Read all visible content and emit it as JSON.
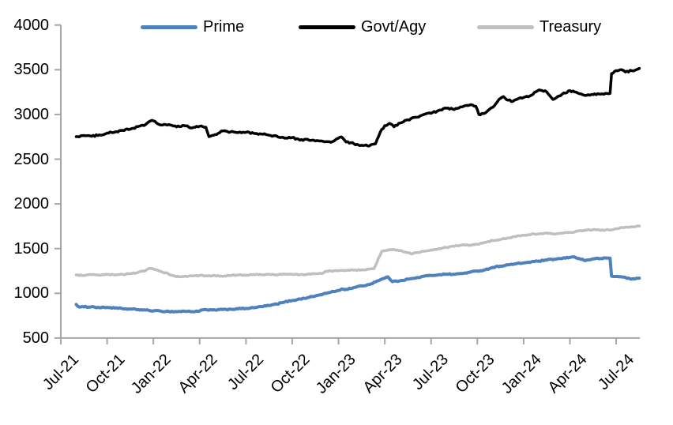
{
  "chart_data": {
    "type": "line",
    "title": "",
    "x_axis": {
      "unit": "month index, 0 = Jul-2021 (monthly series, quarterly ticks)",
      "tick_labels": [
        "Jul-21",
        "Oct-21",
        "Jan-22",
        "Apr-22",
        "Jul-22",
        "Oct-22",
        "Jan-23",
        "Apr-23",
        "Jul-23",
        "Oct-23",
        "Jan-24",
        "Apr-24",
        "Jul-24"
      ],
      "tick_month_index": [
        0,
        3,
        6,
        9,
        12,
        15,
        18,
        21,
        24,
        27,
        30,
        33,
        36
      ]
    },
    "y_axis": {
      "min": 500,
      "max": 4000,
      "tick_step": 500,
      "ticks": [
        500,
        1000,
        1500,
        2000,
        2500,
        3000,
        3500,
        4000
      ]
    },
    "legend": {
      "position": "top",
      "entries": [
        "Prime",
        "Govt/Agy",
        "Treasury"
      ]
    },
    "grid": false,
    "series": [
      {
        "name": "Prime",
        "color": "#4F81BD",
        "points": [
          [
            1.0,
            875
          ],
          [
            1.2,
            845
          ],
          [
            1.5,
            848
          ],
          [
            2.0,
            850
          ],
          [
            2.5,
            840
          ],
          [
            3.0,
            843
          ],
          [
            3.5,
            835
          ],
          [
            4.0,
            828
          ],
          [
            4.5,
            823
          ],
          [
            5.0,
            818
          ],
          [
            5.5,
            812
          ],
          [
            6.0,
            805
          ],
          [
            6.5,
            800
          ],
          [
            7.0,
            797
          ],
          [
            7.5,
            795
          ],
          [
            8.0,
            800
          ],
          [
            8.5,
            795
          ],
          [
            9.0,
            803
          ],
          [
            9.3,
            818
          ],
          [
            9.6,
            812
          ],
          [
            10.0,
            814
          ],
          [
            10.5,
            818
          ],
          [
            11.0,
            822
          ],
          [
            11.5,
            827
          ],
          [
            12.0,
            831
          ],
          [
            12.5,
            838
          ],
          [
            13.0,
            852
          ],
          [
            13.5,
            863
          ],
          [
            14.0,
            880
          ],
          [
            14.5,
            902
          ],
          [
            15.0,
            920
          ],
          [
            15.5,
            936
          ],
          [
            16.0,
            952
          ],
          [
            16.5,
            970
          ],
          [
            17.0,
            992
          ],
          [
            17.5,
            1012
          ],
          [
            18.0,
            1032
          ],
          [
            18.2,
            1048
          ],
          [
            18.4,
            1040
          ],
          [
            19.0,
            1065
          ],
          [
            19.5,
            1082
          ],
          [
            20.0,
            1098
          ],
          [
            20.5,
            1138
          ],
          [
            21.0,
            1170
          ],
          [
            21.2,
            1185
          ],
          [
            21.5,
            1130
          ],
          [
            22.0,
            1142
          ],
          [
            22.5,
            1158
          ],
          [
            23.0,
            1170
          ],
          [
            23.5,
            1190
          ],
          [
            24.0,
            1200
          ],
          [
            24.5,
            1208
          ],
          [
            25.0,
            1215
          ],
          [
            25.5,
            1212
          ],
          [
            26.0,
            1222
          ],
          [
            26.5,
            1235
          ],
          [
            27.0,
            1250
          ],
          [
            27.5,
            1262
          ],
          [
            28.0,
            1290
          ],
          [
            28.5,
            1305
          ],
          [
            29.0,
            1318
          ],
          [
            29.5,
            1330
          ],
          [
            30.0,
            1340
          ],
          [
            30.5,
            1352
          ],
          [
            31.0,
            1360
          ],
          [
            31.5,
            1372
          ],
          [
            32.0,
            1382
          ],
          [
            32.5,
            1390
          ],
          [
            33.0,
            1402
          ],
          [
            33.2,
            1408
          ],
          [
            33.6,
            1390
          ],
          [
            34.0,
            1366
          ],
          [
            34.5,
            1386
          ],
          [
            35.0,
            1390
          ],
          [
            35.5,
            1393
          ],
          [
            35.6,
            1393
          ],
          [
            35.7,
            1192
          ],
          [
            36.0,
            1188
          ],
          [
            36.5,
            1182
          ],
          [
            36.9,
            1162
          ],
          [
            37.0,
            1158
          ],
          [
            37.5,
            1170
          ]
        ]
      },
      {
        "name": "Govt/Agy",
        "color": "#000000",
        "points": [
          [
            1.0,
            2752
          ],
          [
            1.5,
            2765
          ],
          [
            2.0,
            2755
          ],
          [
            2.5,
            2772
          ],
          [
            3.0,
            2792
          ],
          [
            3.5,
            2803
          ],
          [
            4.0,
            2822
          ],
          [
            4.5,
            2836
          ],
          [
            5.0,
            2865
          ],
          [
            5.5,
            2888
          ],
          [
            5.9,
            2935
          ],
          [
            6.2,
            2905
          ],
          [
            6.5,
            2882
          ],
          [
            7.0,
            2888
          ],
          [
            7.5,
            2860
          ],
          [
            8.0,
            2875
          ],
          [
            8.5,
            2850
          ],
          [
            9.0,
            2868
          ],
          [
            9.4,
            2858
          ],
          [
            9.6,
            2752
          ],
          [
            10.0,
            2775
          ],
          [
            10.5,
            2815
          ],
          [
            11.0,
            2805
          ],
          [
            11.5,
            2797
          ],
          [
            12.0,
            2800
          ],
          [
            12.5,
            2790
          ],
          [
            13.0,
            2782
          ],
          [
            13.5,
            2768
          ],
          [
            14.0,
            2758
          ],
          [
            14.5,
            2735
          ],
          [
            15.0,
            2742
          ],
          [
            15.5,
            2712
          ],
          [
            16.0,
            2722
          ],
          [
            16.5,
            2703
          ],
          [
            17.0,
            2700
          ],
          [
            17.5,
            2688
          ],
          [
            18.0,
            2735
          ],
          [
            18.2,
            2748
          ],
          [
            18.5,
            2692
          ],
          [
            19.0,
            2672
          ],
          [
            19.5,
            2656
          ],
          [
            20.0,
            2648
          ],
          [
            20.4,
            2672
          ],
          [
            20.7,
            2800
          ],
          [
            21.0,
            2875
          ],
          [
            21.3,
            2900
          ],
          [
            21.6,
            2862
          ],
          [
            22.0,
            2905
          ],
          [
            22.5,
            2940
          ],
          [
            23.0,
            2968
          ],
          [
            23.5,
            2998
          ],
          [
            24.0,
            3012
          ],
          [
            24.5,
            3045
          ],
          [
            25.0,
            3070
          ],
          [
            25.5,
            3055
          ],
          [
            26.0,
            3085
          ],
          [
            26.5,
            3105
          ],
          [
            26.9,
            3092
          ],
          [
            27.1,
            3000
          ],
          [
            27.5,
            3015
          ],
          [
            28.0,
            3080
          ],
          [
            28.5,
            3180
          ],
          [
            28.7,
            3200
          ],
          [
            29.0,
            3160
          ],
          [
            29.3,
            3146
          ],
          [
            29.5,
            3165
          ],
          [
            30.0,
            3190
          ],
          [
            30.5,
            3215
          ],
          [
            31.0,
            3275
          ],
          [
            31.5,
            3252
          ],
          [
            31.9,
            3168
          ],
          [
            32.5,
            3228
          ],
          [
            33.0,
            3268
          ],
          [
            33.5,
            3240
          ],
          [
            34.0,
            3212
          ],
          [
            34.5,
            3222
          ],
          [
            35.0,
            3228
          ],
          [
            35.5,
            3232
          ],
          [
            35.6,
            3235
          ],
          [
            35.7,
            3458
          ],
          [
            36.0,
            3490
          ],
          [
            36.3,
            3502
          ],
          [
            36.6,
            3475
          ],
          [
            37.0,
            3490
          ],
          [
            37.5,
            3515
          ]
        ]
      },
      {
        "name": "Treasury",
        "color": "#BFBFBF",
        "points": [
          [
            1.0,
            1205
          ],
          [
            1.5,
            1200
          ],
          [
            2.0,
            1208
          ],
          [
            2.5,
            1202
          ],
          [
            3.0,
            1210
          ],
          [
            3.5,
            1205
          ],
          [
            4.0,
            1212
          ],
          [
            4.5,
            1220
          ],
          [
            5.0,
            1232
          ],
          [
            5.5,
            1255
          ],
          [
            5.8,
            1280
          ],
          [
            6.2,
            1262
          ],
          [
            6.5,
            1245
          ],
          [
            7.0,
            1215
          ],
          [
            7.5,
            1185
          ],
          [
            8.0,
            1188
          ],
          [
            8.5,
            1195
          ],
          [
            9.0,
            1200
          ],
          [
            9.5,
            1193
          ],
          [
            10.0,
            1197
          ],
          [
            10.5,
            1190
          ],
          [
            11.0,
            1200
          ],
          [
            11.5,
            1205
          ],
          [
            12.0,
            1200
          ],
          [
            12.5,
            1210
          ],
          [
            13.0,
            1208
          ],
          [
            13.5,
            1215
          ],
          [
            14.0,
            1205
          ],
          [
            14.5,
            1215
          ],
          [
            15.0,
            1212
          ],
          [
            15.5,
            1208
          ],
          [
            16.0,
            1213
          ],
          [
            16.5,
            1220
          ],
          [
            17.0,
            1225
          ],
          [
            17.2,
            1248
          ],
          [
            17.5,
            1250
          ],
          [
            18.0,
            1252
          ],
          [
            18.5,
            1255
          ],
          [
            19.0,
            1258
          ],
          [
            19.5,
            1263
          ],
          [
            20.0,
            1270
          ],
          [
            20.3,
            1276
          ],
          [
            20.8,
            1468
          ],
          [
            21.0,
            1475
          ],
          [
            21.5,
            1488
          ],
          [
            22.0,
            1478
          ],
          [
            22.5,
            1455
          ],
          [
            22.8,
            1442
          ],
          [
            23.0,
            1455
          ],
          [
            23.5,
            1470
          ],
          [
            24.0,
            1485
          ],
          [
            24.5,
            1500
          ],
          [
            25.0,
            1512
          ],
          [
            25.5,
            1525
          ],
          [
            26.0,
            1540
          ],
          [
            26.5,
            1538
          ],
          [
            27.0,
            1548
          ],
          [
            27.5,
            1570
          ],
          [
            28.0,
            1590
          ],
          [
            28.5,
            1602
          ],
          [
            29.0,
            1620
          ],
          [
            29.5,
            1635
          ],
          [
            30.0,
            1648
          ],
          [
            30.5,
            1660
          ],
          [
            31.0,
            1665
          ],
          [
            31.5,
            1674
          ],
          [
            32.0,
            1662
          ],
          [
            32.5,
            1672
          ],
          [
            33.0,
            1680
          ],
          [
            33.5,
            1695
          ],
          [
            34.0,
            1705
          ],
          [
            34.5,
            1712
          ],
          [
            35.0,
            1703
          ],
          [
            35.5,
            1710
          ],
          [
            36.0,
            1722
          ],
          [
            36.5,
            1735
          ],
          [
            37.0,
            1745
          ],
          [
            37.5,
            1752
          ]
        ]
      }
    ],
    "colors": {
      "axis": "#A6A6A6",
      "tick_mark": "#A6A6A6",
      "label_text": "#000000"
    }
  }
}
